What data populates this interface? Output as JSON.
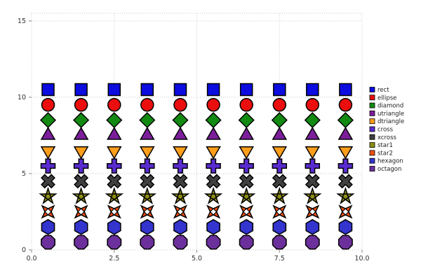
{
  "chart_data": {
    "type": "scatter",
    "title": "",
    "xlabel": "",
    "ylabel": "",
    "x": [
      0.5,
      1.5,
      2.5,
      3.5,
      4.5,
      5.5,
      6.5,
      7.5,
      8.5,
      9.5
    ],
    "series": [
      {
        "name": "rect",
        "marker": "rect",
        "color": "#0c0ce0",
        "y": 10.5
      },
      {
        "name": "ellipse",
        "marker": "ellipse",
        "color": "#ea0e0e",
        "y": 9.5
      },
      {
        "name": "diamond",
        "marker": "diamond",
        "color": "#128a12",
        "y": 8.5
      },
      {
        "name": "utriangle",
        "marker": "utriangle",
        "color": "#7c1e9c",
        "y": 7.5
      },
      {
        "name": "dtriangle",
        "marker": "dtriangle",
        "color": "#ff9e1b",
        "y": 6.5
      },
      {
        "name": "cross",
        "marker": "cross",
        "color": "#5a2bd0",
        "y": 5.5
      },
      {
        "name": "xcross",
        "marker": "xcross",
        "color": "#3f3f3f",
        "y": 4.5
      },
      {
        "name": "star1",
        "marker": "star1",
        "color": "#8d8d16",
        "y": 3.5
      },
      {
        "name": "star2",
        "marker": "star2",
        "color": "#ee4f12",
        "y": 2.5
      },
      {
        "name": "hexagon",
        "marker": "hexagon",
        "color": "#3434cf",
        "y": 1.5
      },
      {
        "name": "octagon",
        "marker": "octagon",
        "color": "#6c309c",
        "y": 0.5
      }
    ],
    "xlim": [
      0,
      10
    ],
    "ylim": [
      0,
      15.5
    ],
    "xticks": {
      "values": [
        0,
        2.5,
        5,
        7.5,
        10
      ],
      "labels": [
        "0.0",
        "2.5",
        "5.0",
        "7.5",
        "10.0"
      ]
    },
    "yticks": {
      "values": [
        0,
        5,
        10,
        15
      ],
      "labels": [
        "0",
        "5",
        "10",
        "15"
      ]
    },
    "grid": {
      "on": true,
      "style": "dotted",
      "color": "#c9c9c9"
    },
    "frame_color": "#c9c9c9",
    "tick_color": "#888888",
    "tick_label_color": "#333333",
    "marker_stroke": "#000000",
    "legend": {
      "position": "right",
      "text_color": "#222222"
    }
  }
}
